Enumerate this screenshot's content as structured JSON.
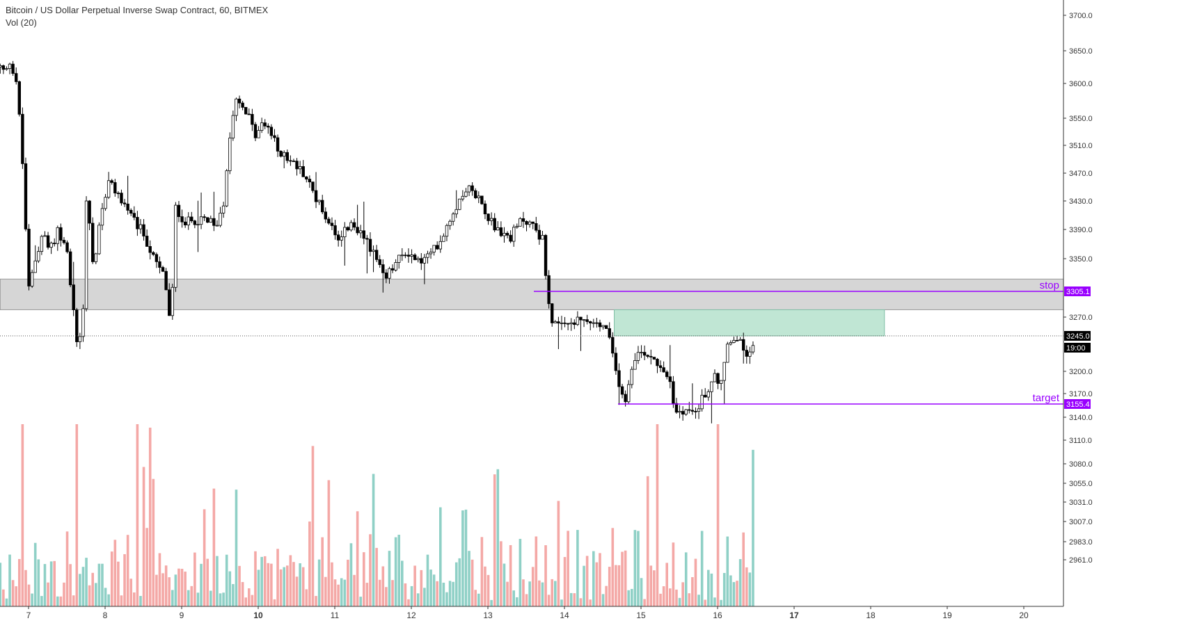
{
  "header": {
    "title": "Bitcoin / US Dollar Perpetual Inverse Swap Contract, 60, BITMEX",
    "volume_label": "Vol (20)"
  },
  "colors": {
    "up": "#8fd0c6",
    "down": "#f4a8a6",
    "candle": "#000000",
    "zone_gray": "#d6d6d6",
    "zone_green": "#c0e6d4",
    "level_line": "#9900ff",
    "price_tag_bg": "#000000"
  },
  "chart_data": {
    "type": "candlestick",
    "y_axis": {
      "ticks": [
        3700.0,
        3650.0,
        3600.0,
        3550.0,
        3510.0,
        3470.0,
        3430.0,
        3390.0,
        3350.0,
        3270.0,
        3200.0,
        3170.0,
        3140.0,
        3110.0,
        3080.0,
        3055.0,
        3031.0,
        3007.0,
        2983.0,
        2961.0
      ],
      "tick_labels": [
        "3700.0",
        "3650.0",
        "3600.0",
        "3550.0",
        "3510.0",
        "3470.0",
        "3430.0",
        "3390.0",
        "3350.0",
        "3270.0",
        "3200.0",
        "3170.0",
        "3140.0",
        "3110.0",
        "3080.0",
        "3055.0",
        "3031.0",
        "3007.0",
        "2983.0",
        "2961.0"
      ]
    },
    "x_axis": {
      "ticks": [
        7,
        8,
        9,
        10,
        11,
        12,
        13,
        14,
        15,
        16,
        17,
        18,
        19,
        20
      ],
      "tick_labels": [
        "7",
        "8",
        "9",
        "10",
        "11",
        "12",
        "13",
        "14",
        "15",
        "16",
        "17",
        "18",
        "19",
        "20"
      ],
      "bold_labels": [
        "10",
        "17"
      ],
      "range": [
        6.63,
        20.55
      ]
    },
    "zones": [
      {
        "kind": "gray",
        "x_from": 6.63,
        "x_to": 20.55,
        "price_top": 3322,
        "price_bottom": 3280
      },
      {
        "kind": "green",
        "x_from": 14.65,
        "x_to": 18.18,
        "price_top": 3280,
        "price_bottom": 3245
      }
    ],
    "levels": [
      {
        "label": "stop",
        "price": 3305.1,
        "price_label": "3305.1",
        "x_from": 13.6
      },
      {
        "label": "target",
        "price": 3155.4,
        "price_label": "3155.4",
        "x_from": 14.7
      }
    ],
    "current": {
      "price": 3245.0,
      "price_label": "3245.0",
      "countdown": "19:00"
    },
    "candle_anchors": [
      [
        6.63,
        3625
      ],
      [
        6.7,
        3615
      ],
      [
        6.76,
        3635
      ],
      [
        6.85,
        3600
      ],
      [
        6.93,
        3470
      ],
      [
        7.0,
        3305
      ],
      [
        7.08,
        3345
      ],
      [
        7.18,
        3385
      ],
      [
        7.28,
        3360
      ],
      [
        7.38,
        3390
      ],
      [
        7.5,
        3360
      ],
      [
        7.62,
        3245
      ],
      [
        7.7,
        3240
      ],
      [
        7.76,
        3450
      ],
      [
        7.85,
        3330
      ],
      [
        7.95,
        3420
      ],
      [
        8.05,
        3455
      ],
      [
        8.2,
        3435
      ],
      [
        8.35,
        3405
      ],
      [
        8.5,
        3385
      ],
      [
        8.65,
        3345
      ],
      [
        8.78,
        3325
      ],
      [
        8.86,
        3250
      ],
      [
        8.92,
        3420
      ],
      [
        9.05,
        3400
      ],
      [
        9.25,
        3405
      ],
      [
        9.45,
        3395
      ],
      [
        9.55,
        3430
      ],
      [
        9.62,
        3515
      ],
      [
        9.7,
        3585
      ],
      [
        9.85,
        3560
      ],
      [
        9.95,
        3525
      ],
      [
        10.1,
        3545
      ],
      [
        10.25,
        3505
      ],
      [
        10.45,
        3485
      ],
      [
        10.6,
        3470
      ],
      [
        10.75,
        3435
      ],
      [
        10.9,
        3405
      ],
      [
        11.05,
        3380
      ],
      [
        11.2,
        3395
      ],
      [
        11.35,
        3385
      ],
      [
        11.45,
        3370
      ],
      [
        11.55,
        3345
      ],
      [
        11.65,
        3320
      ],
      [
        11.8,
        3345
      ],
      [
        11.95,
        3360
      ],
      [
        12.1,
        3345
      ],
      [
        12.25,
        3355
      ],
      [
        12.4,
        3380
      ],
      [
        12.5,
        3405
      ],
      [
        12.6,
        3425
      ],
      [
        12.7,
        3450
      ],
      [
        12.85,
        3440
      ],
      [
        13.0,
        3410
      ],
      [
        13.15,
        3385
      ],
      [
        13.3,
        3380
      ],
      [
        13.45,
        3405
      ],
      [
        13.6,
        3395
      ],
      [
        13.72,
        3375
      ],
      [
        13.78,
        3300
      ],
      [
        13.85,
        3260
      ],
      [
        13.95,
        3255
      ],
      [
        14.1,
        3262
      ],
      [
        14.25,
        3265
      ],
      [
        14.4,
        3260
      ],
      [
        14.55,
        3255
      ],
      [
        14.68,
        3195
      ],
      [
        14.8,
        3160
      ],
      [
        14.9,
        3220
      ],
      [
        15.05,
        3225
      ],
      [
        15.2,
        3215
      ],
      [
        15.35,
        3195
      ],
      [
        15.45,
        3145
      ],
      [
        15.55,
        3150
      ],
      [
        15.65,
        3145
      ],
      [
        15.75,
        3155
      ],
      [
        15.85,
        3170
      ],
      [
        15.95,
        3195
      ],
      [
        16.05,
        3185
      ],
      [
        16.12,
        3230
      ],
      [
        16.22,
        3240
      ],
      [
        16.32,
        3235
      ],
      [
        16.4,
        3215
      ],
      [
        16.5,
        3245
      ]
    ]
  }
}
